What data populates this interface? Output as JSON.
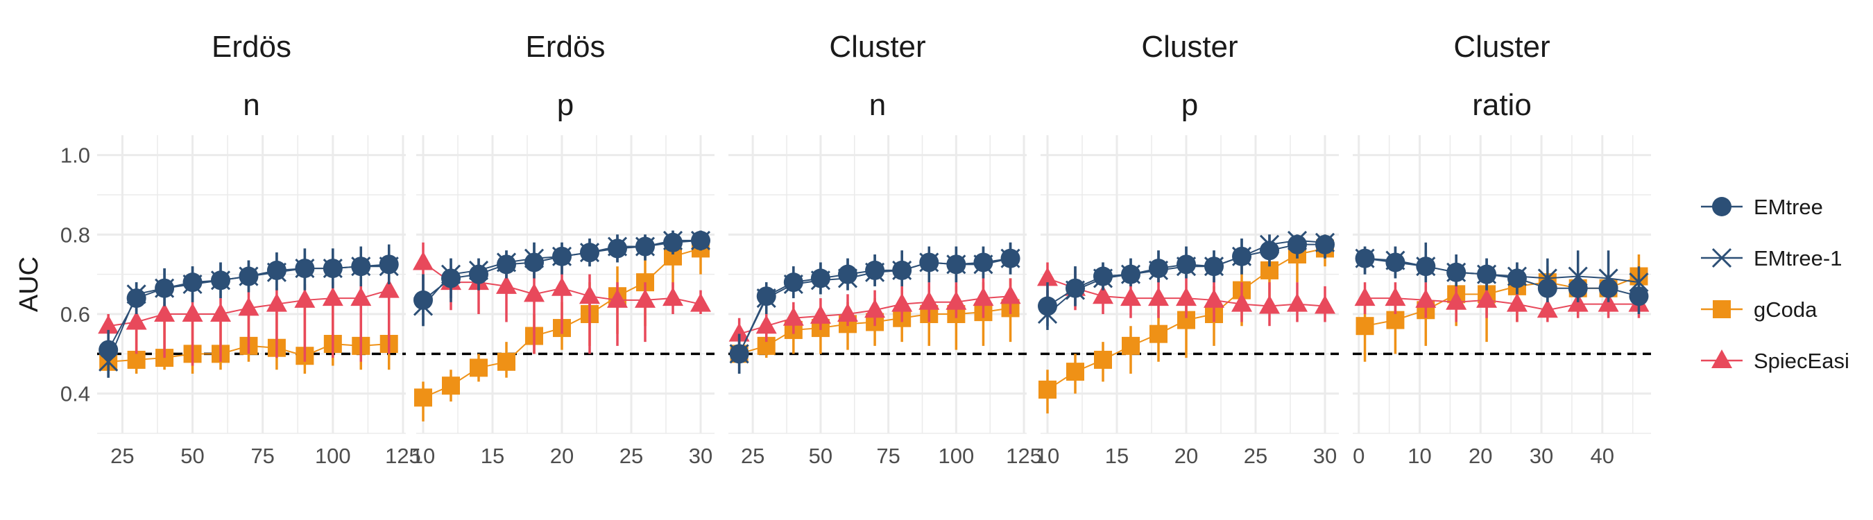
{
  "chart_data": {
    "type": "line",
    "ylabel": "AUC",
    "ylim": [
      0.3,
      1.05
    ],
    "yticks": [
      0.4,
      0.6,
      0.8,
      1.0
    ],
    "ytick_labels": [
      "0.4",
      "0.6",
      "0.8",
      "1.0"
    ],
    "reference_line": 0.5,
    "grid": true,
    "legend_position": "right",
    "colors": {
      "EMtree": "#2c4f76",
      "EMtree-1": "#2c4f76",
      "gCoda": "#ef9116",
      "SpiecEasi": "#e8495b",
      "reference": "#000000",
      "grid": "#ebebeb"
    },
    "legend": [
      {
        "name": "EMtree",
        "marker": "circle"
      },
      {
        "name": "EMtree-1",
        "marker": "cross"
      },
      {
        "name": "gCoda",
        "marker": "square"
      },
      {
        "name": "SpiecEasi",
        "marker": "triangle"
      }
    ],
    "panels": [
      {
        "strip": [
          "Erdös",
          "n"
        ],
        "xlim": [
          16,
          126
        ],
        "xticks": [
          25,
          50,
          75,
          100,
          125
        ],
        "xtick_labels": [
          "25",
          "50",
          "75",
          "100",
          "125"
        ],
        "x": [
          20,
          30,
          40,
          50,
          60,
          70,
          80,
          90,
          100,
          110,
          120
        ],
        "series": [
          {
            "name": "EMtree",
            "values": [
              0.51,
              0.64,
              0.665,
              0.68,
              0.685,
              0.695,
              0.71,
              0.715,
              0.715,
              0.72,
              0.725
            ],
            "lower": [
              0.44,
              0.6,
              0.62,
              0.63,
              0.64,
              0.655,
              0.66,
              0.66,
              0.665,
              0.67,
              0.675
            ],
            "upper": [
              0.56,
              0.68,
              0.715,
              0.72,
              0.73,
              0.735,
              0.755,
              0.765,
              0.765,
              0.77,
              0.775
            ]
          },
          {
            "name": "EMtree-1",
            "values": [
              0.48,
              0.65,
              0.665,
              0.675,
              0.685,
              0.695,
              0.705,
              0.715,
              0.715,
              0.72,
              0.72
            ],
            "lower": [
              0.44,
              0.6,
              0.62,
              0.63,
              0.64,
              0.655,
              0.66,
              0.66,
              0.665,
              0.67,
              0.675
            ],
            "upper": [
              0.53,
              0.68,
              0.715,
              0.72,
              0.73,
              0.735,
              0.755,
              0.765,
              0.765,
              0.77,
              0.775
            ]
          },
          {
            "name": "gCoda",
            "values": [
              0.48,
              0.485,
              0.49,
              0.5,
              0.5,
              0.52,
              0.515,
              0.495,
              0.525,
              0.52,
              0.525
            ],
            "lower": [
              0.46,
              0.45,
              0.46,
              0.45,
              0.46,
              0.48,
              0.46,
              0.45,
              0.47,
              0.46,
              0.46
            ],
            "upper": [
              0.52,
              0.56,
              0.6,
              0.62,
              0.62,
              0.62,
              0.64,
              0.63,
              0.64,
              0.65,
              0.67
            ]
          },
          {
            "name": "SpiecEasi",
            "values": [
              0.57,
              0.58,
              0.6,
              0.6,
              0.6,
              0.615,
              0.625,
              0.635,
              0.64,
              0.64,
              0.66
            ],
            "lower": [
              0.5,
              0.5,
              0.49,
              0.47,
              0.48,
              0.5,
              0.49,
              0.48,
              0.49,
              0.48,
              0.5
            ],
            "upper": [
              0.6,
              0.63,
              0.63,
              0.63,
              0.64,
              0.655,
              0.665,
              0.675,
              0.68,
              0.68,
              0.7
            ]
          }
        ]
      },
      {
        "strip": [
          "Erdös",
          "p"
        ],
        "xlim": [
          9.5,
          31
        ],
        "xticks": [
          10,
          15,
          20,
          25,
          30
        ],
        "xtick_labels": [
          "10",
          "15",
          "20",
          "25",
          "30"
        ],
        "x": [
          10,
          12,
          14,
          16,
          18,
          20,
          22,
          24,
          26,
          28,
          30
        ],
        "series": [
          {
            "name": "EMtree",
            "values": [
              0.635,
              0.69,
              0.7,
              0.725,
              0.73,
              0.745,
              0.755,
              0.765,
              0.77,
              0.78,
              0.785
            ],
            "lower": [
              0.57,
              0.63,
              0.66,
              0.69,
              0.69,
              0.7,
              0.72,
              0.73,
              0.735,
              0.75,
              0.76
            ],
            "upper": [
              0.7,
              0.74,
              0.74,
              0.76,
              0.78,
              0.78,
              0.79,
              0.8,
              0.8,
              0.81,
              0.81
            ]
          },
          {
            "name": "EMtree-1",
            "values": [
              0.62,
              0.7,
              0.71,
              0.73,
              0.74,
              0.745,
              0.755,
              0.77,
              0.77,
              0.785,
              0.785
            ],
            "lower": [
              0.57,
              0.64,
              0.66,
              0.69,
              0.69,
              0.7,
              0.72,
              0.73,
              0.735,
              0.75,
              0.76
            ],
            "upper": [
              0.7,
              0.74,
              0.74,
              0.76,
              0.78,
              0.78,
              0.79,
              0.8,
              0.8,
              0.81,
              0.81
            ]
          },
          {
            "name": "gCoda",
            "values": [
              0.39,
              0.42,
              0.465,
              0.48,
              0.545,
              0.565,
              0.6,
              0.645,
              0.68,
              0.745,
              0.765
            ],
            "lower": [
              0.33,
              0.38,
              0.43,
              0.44,
              0.5,
              0.51,
              0.52,
              0.55,
              0.57,
              0.62,
              0.7
            ],
            "upper": [
              0.43,
              0.46,
              0.5,
              0.53,
              0.6,
              0.63,
              0.68,
              0.72,
              0.75,
              0.8,
              0.8
            ]
          },
          {
            "name": "SpiecEasi",
            "values": [
              0.73,
              0.68,
              0.68,
              0.67,
              0.65,
              0.665,
              0.645,
              0.635,
              0.635,
              0.64,
              0.625
            ],
            "lower": [
              0.65,
              0.61,
              0.6,
              0.58,
              0.5,
              0.55,
              0.5,
              0.52,
              0.53,
              0.6,
              0.6
            ],
            "upper": [
              0.78,
              0.72,
              0.72,
              0.72,
              0.72,
              0.72,
              0.7,
              0.68,
              0.68,
              0.68,
              0.66
            ]
          }
        ]
      },
      {
        "strip": [
          "Cluster",
          "n"
        ],
        "xlim": [
          16,
          126
        ],
        "xticks": [
          25,
          50,
          75,
          100,
          125
        ],
        "xtick_labels": [
          "25",
          "50",
          "75",
          "100",
          "125"
        ],
        "x": [
          20,
          30,
          40,
          50,
          60,
          70,
          80,
          90,
          100,
          110,
          120
        ],
        "series": [
          {
            "name": "EMtree",
            "values": [
              0.5,
              0.645,
              0.68,
              0.69,
              0.7,
              0.71,
              0.71,
              0.73,
              0.725,
              0.73,
              0.74
            ],
            "lower": [
              0.45,
              0.6,
              0.64,
              0.65,
              0.66,
              0.67,
              0.67,
              0.68,
              0.68,
              0.69,
              0.7
            ],
            "upper": [
              0.55,
              0.68,
              0.72,
              0.73,
              0.74,
              0.75,
              0.76,
              0.77,
              0.77,
              0.77,
              0.78
            ]
          },
          {
            "name": "EMtree-1",
            "values": [
              0.5,
              0.64,
              0.675,
              0.685,
              0.69,
              0.705,
              0.71,
              0.73,
              0.725,
              0.725,
              0.74
            ],
            "lower": [
              0.45,
              0.6,
              0.64,
              0.65,
              0.66,
              0.67,
              0.67,
              0.68,
              0.68,
              0.69,
              0.7
            ],
            "upper": [
              0.55,
              0.68,
              0.72,
              0.73,
              0.74,
              0.75,
              0.76,
              0.77,
              0.77,
              0.77,
              0.78
            ]
          },
          {
            "name": "gCoda",
            "values": [
              0.5,
              0.52,
              0.56,
              0.565,
              0.575,
              0.58,
              0.59,
              0.6,
              0.6,
              0.605,
              0.615
            ],
            "lower": [
              0.47,
              0.49,
              0.5,
              0.5,
              0.51,
              0.52,
              0.53,
              0.52,
              0.51,
              0.52,
              0.53
            ],
            "upper": [
              0.53,
              0.58,
              0.62,
              0.62,
              0.63,
              0.64,
              0.66,
              0.67,
              0.67,
              0.68,
              0.69
            ]
          },
          {
            "name": "SpiecEasi",
            "values": [
              0.55,
              0.57,
              0.59,
              0.595,
              0.6,
              0.61,
              0.625,
              0.63,
              0.63,
              0.64,
              0.645
            ],
            "lower": [
              0.51,
              0.53,
              0.55,
              0.56,
              0.57,
              0.57,
              0.58,
              0.58,
              0.59,
              0.59,
              0.6
            ],
            "upper": [
              0.59,
              0.61,
              0.63,
              0.64,
              0.65,
              0.66,
              0.67,
              0.68,
              0.68,
              0.69,
              0.69
            ]
          }
        ]
      },
      {
        "strip": [
          "Cluster",
          "p"
        ],
        "xlim": [
          9.5,
          31
        ],
        "xticks": [
          10,
          15,
          20,
          25,
          30
        ],
        "xtick_labels": [
          "10",
          "15",
          "20",
          "25",
          "30"
        ],
        "x": [
          10,
          12,
          14,
          16,
          18,
          20,
          22,
          24,
          26,
          28,
          30
        ],
        "series": [
          {
            "name": "EMtree",
            "values": [
              0.62,
              0.665,
              0.695,
              0.7,
              0.715,
              0.725,
              0.72,
              0.745,
              0.76,
              0.775,
              0.775
            ],
            "lower": [
              0.57,
              0.62,
              0.66,
              0.67,
              0.68,
              0.69,
              0.68,
              0.7,
              0.72,
              0.74,
              0.74
            ],
            "upper": [
              0.68,
              0.72,
              0.73,
              0.74,
              0.76,
              0.77,
              0.76,
              0.79,
              0.8,
              0.8,
              0.8
            ]
          },
          {
            "name": "EMtree-1",
            "values": [
              0.6,
              0.66,
              0.69,
              0.7,
              0.71,
              0.72,
              0.72,
              0.745,
              0.775,
              0.785,
              0.78
            ],
            "lower": [
              0.56,
              0.62,
              0.66,
              0.67,
              0.68,
              0.69,
              0.68,
              0.7,
              0.72,
              0.74,
              0.74
            ],
            "upper": [
              0.66,
              0.72,
              0.73,
              0.74,
              0.76,
              0.77,
              0.76,
              0.79,
              0.8,
              0.8,
              0.8
            ]
          },
          {
            "name": "gCoda",
            "values": [
              0.41,
              0.455,
              0.485,
              0.52,
              0.55,
              0.585,
              0.6,
              0.66,
              0.71,
              0.75,
              0.765
            ],
            "lower": [
              0.35,
              0.4,
              0.43,
              0.45,
              0.48,
              0.49,
              0.52,
              0.57,
              0.63,
              0.68,
              0.72
            ],
            "upper": [
              0.46,
              0.5,
              0.53,
              0.57,
              0.61,
              0.64,
              0.67,
              0.72,
              0.76,
              0.79,
              0.8
            ]
          },
          {
            "name": "SpiecEasi",
            "values": [
              0.69,
              0.665,
              0.645,
              0.64,
              0.64,
              0.64,
              0.635,
              0.625,
              0.62,
              0.625,
              0.62
            ],
            "lower": [
              0.63,
              0.61,
              0.6,
              0.59,
              0.59,
              0.59,
              0.58,
              0.58,
              0.57,
              0.58,
              0.58
            ],
            "upper": [
              0.73,
              0.71,
              0.69,
              0.69,
              0.69,
              0.69,
              0.69,
              0.68,
              0.68,
              0.68,
              0.67
            ]
          }
        ]
      },
      {
        "strip": [
          "Cluster",
          "ratio"
        ],
        "xlim": [
          -1,
          48
        ],
        "xticks": [
          0,
          10,
          20,
          30,
          40
        ],
        "xtick_labels": [
          "0",
          "10",
          "20",
          "30",
          "40"
        ],
        "x": [
          1,
          6,
          11,
          16,
          21,
          26,
          31,
          36,
          41,
          46
        ],
        "series": [
          {
            "name": "EMtree",
            "values": [
              0.74,
              0.73,
              0.72,
              0.705,
              0.7,
              0.69,
              0.665,
              0.665,
              0.665,
              0.645
            ],
            "lower": [
              0.7,
              0.69,
              0.68,
              0.67,
              0.66,
              0.65,
              0.63,
              0.63,
              0.63,
              0.6
            ],
            "upper": [
              0.77,
              0.77,
              0.76,
              0.75,
              0.74,
              0.73,
              0.7,
              0.7,
              0.7,
              0.69
            ]
          },
          {
            "name": "EMtree-1",
            "values": [
              0.74,
              0.735,
              0.72,
              0.705,
              0.7,
              0.695,
              0.69,
              0.695,
              0.69,
              0.68
            ],
            "lower": [
              0.7,
              0.69,
              0.68,
              0.67,
              0.66,
              0.65,
              0.63,
              0.63,
              0.64,
              0.62
            ],
            "upper": [
              0.77,
              0.77,
              0.78,
              0.75,
              0.74,
              0.73,
              0.74,
              0.76,
              0.76,
              0.72
            ]
          },
          {
            "name": "gCoda",
            "values": [
              0.57,
              0.585,
              0.61,
              0.65,
              0.65,
              0.67,
              0.68,
              0.665,
              0.665,
              0.695
            ],
            "lower": [
              0.48,
              0.5,
              0.52,
              0.57,
              0.53,
              0.58,
              0.6,
              0.6,
              0.61,
              0.64
            ],
            "upper": [
              0.63,
              0.64,
              0.67,
              0.7,
              0.7,
              0.71,
              0.72,
              0.7,
              0.7,
              0.75
            ]
          },
          {
            "name": "SpiecEasi",
            "values": [
              0.64,
              0.64,
              0.635,
              0.63,
              0.635,
              0.625,
              0.61,
              0.625,
              0.625,
              0.625
            ],
            "lower": [
              0.6,
              0.6,
              0.59,
              0.58,
              0.59,
              0.58,
              0.58,
              0.59,
              0.59,
              0.59
            ],
            "upper": [
              0.68,
              0.68,
              0.68,
              0.67,
              0.68,
              0.67,
              0.65,
              0.66,
              0.66,
              0.67
            ]
          }
        ]
      }
    ]
  }
}
